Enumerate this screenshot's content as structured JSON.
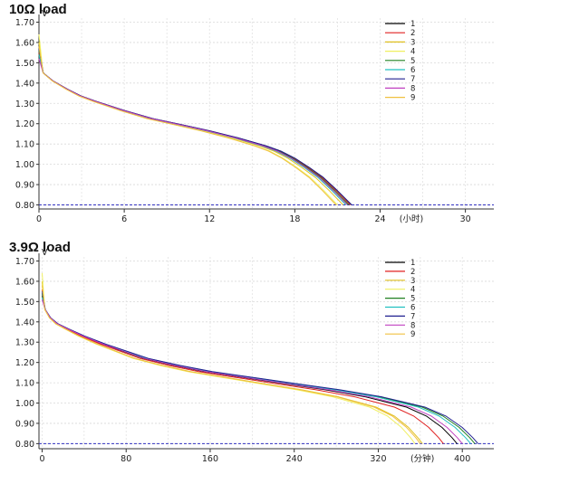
{
  "chart_data": [
    {
      "type": "line",
      "title": "10Ω load",
      "ylabel": "V",
      "xunit": "(小时)",
      "xlim": [
        0,
        32
      ],
      "ylim": [
        0.78,
        1.72
      ],
      "xticks": [
        0,
        6,
        12,
        18,
        24,
        30
      ],
      "yticks": [
        0.8,
        0.9,
        1.0,
        1.1,
        1.2,
        1.3,
        1.4,
        1.5,
        1.6,
        1.7
      ],
      "cutoff": 0.8,
      "grid": true,
      "legend": "top-right",
      "shape": {
        "x": [
          0,
          0.3,
          1,
          2,
          3,
          4,
          6,
          8,
          10,
          12,
          14,
          15,
          16,
          17,
          18,
          19,
          20,
          21,
          21.5,
          22
        ],
        "y": [
          1.53,
          1.45,
          1.41,
          1.37,
          1.335,
          1.31,
          1.265,
          1.225,
          1.195,
          1.165,
          1.13,
          1.11,
          1.09,
          1.065,
          1.03,
          0.985,
          0.935,
          0.87,
          0.835,
          0.8
        ]
      },
      "series": [
        {
          "name": "1",
          "color": "#000000",
          "start": 1.55,
          "end": 22.0
        },
        {
          "name": "2",
          "color": "#e02020",
          "start": 1.55,
          "end": 21.9
        },
        {
          "name": "3",
          "color": "#e0c020",
          "start": 1.6,
          "end": 21.4
        },
        {
          "name": "4",
          "color": "#f0f060",
          "start": 1.64,
          "end": 21.0
        },
        {
          "name": "5",
          "color": "#208020",
          "start": 1.56,
          "end": 21.8
        },
        {
          "name": "6",
          "color": "#20c0c0",
          "start": 1.54,
          "end": 21.6
        },
        {
          "name": "7",
          "color": "#202090",
          "start": 1.57,
          "end": 22.0
        },
        {
          "name": "8",
          "color": "#c040c0",
          "start": 1.52,
          "end": 21.7
        },
        {
          "name": "9",
          "color": "#f0c040",
          "start": 1.58,
          "end": 20.9
        }
      ]
    },
    {
      "type": "line",
      "title": "3.9Ω load",
      "ylabel": "V",
      "xunit": "(分钟)",
      "xlim": [
        -3,
        430
      ],
      "ylim": [
        0.775,
        1.72
      ],
      "xticks": [
        0,
        80,
        160,
        240,
        320,
        400
      ],
      "yticks": [
        0.8,
        0.9,
        1.0,
        1.1,
        1.2,
        1.3,
        1.4,
        1.5,
        1.6,
        1.7
      ],
      "cutoff": 0.8,
      "grid": true,
      "legend": "top-right",
      "shape": {
        "x": [
          0,
          3,
          8,
          15,
          25,
          40,
          60,
          80,
          100,
          130,
          160,
          200,
          240,
          280,
          320,
          340,
          360,
          380,
          395,
          405,
          410
        ],
        "y": [
          1.53,
          1.46,
          1.42,
          1.39,
          1.365,
          1.33,
          1.29,
          1.255,
          1.22,
          1.185,
          1.155,
          1.125,
          1.095,
          1.065,
          1.03,
          1.005,
          0.98,
          0.935,
          0.88,
          0.83,
          0.8
        ]
      },
      "series": [
        {
          "name": "1",
          "color": "#000000",
          "start": 1.53,
          "end": 395
        },
        {
          "name": "2",
          "color": "#e02020",
          "start": 1.56,
          "end": 382
        },
        {
          "name": "3",
          "color": "#e0c020",
          "start": 1.6,
          "end": 362
        },
        {
          "name": "4",
          "color": "#f0f060",
          "start": 1.64,
          "end": 355
        },
        {
          "name": "5",
          "color": "#208020",
          "start": 1.54,
          "end": 412
        },
        {
          "name": "6",
          "color": "#20c0c0",
          "start": 1.52,
          "end": 408
        },
        {
          "name": "7",
          "color": "#202090",
          "start": 1.55,
          "end": 415
        },
        {
          "name": "8",
          "color": "#c040c0",
          "start": 1.51,
          "end": 400
        },
        {
          "name": "9",
          "color": "#f0c040",
          "start": 1.58,
          "end": 360
        }
      ]
    }
  ]
}
